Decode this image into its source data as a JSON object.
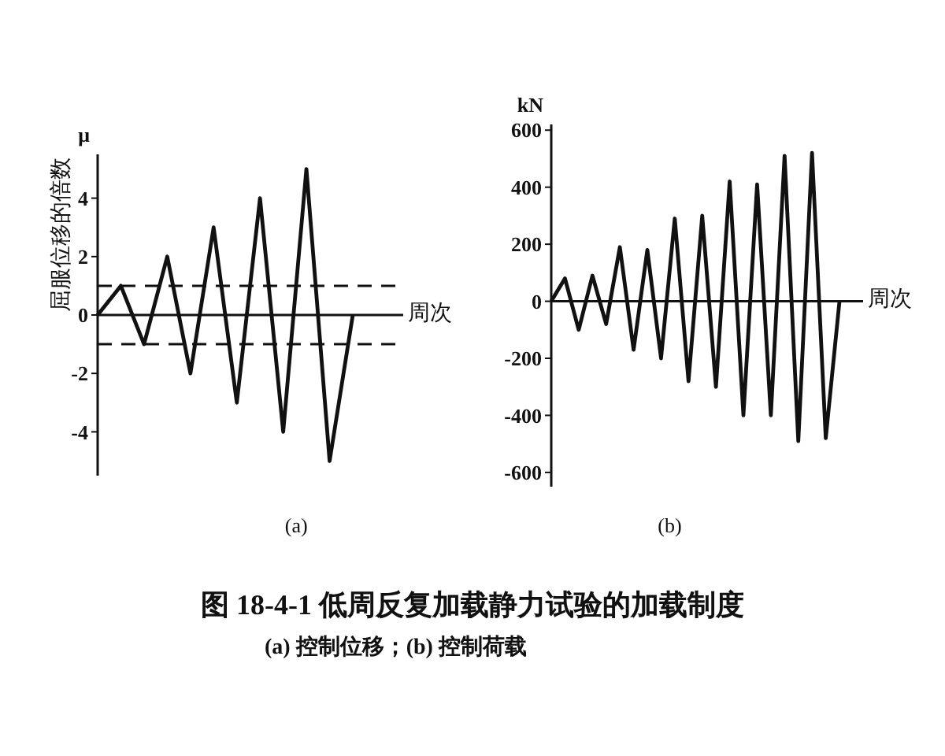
{
  "chart_data": [
    {
      "type": "line",
      "title": "(a)",
      "ylabel": "屈服位移的倍数",
      "xlabel": "周次",
      "annotations": [
        "μ"
      ],
      "categories": [
        null,
        null,
        null,
        null,
        null,
        null,
        null,
        null,
        null,
        null,
        null,
        null
      ],
      "series": [
        {
          "color": "#111111",
          "values": [
            0,
            1,
            -1,
            2,
            -2,
            3,
            -3,
            4,
            -4,
            5,
            -5,
            0
          ]
        }
      ],
      "ylim": [
        -5.5,
        5.5
      ],
      "yticks": [
        -4,
        -2,
        0,
        2,
        4
      ],
      "tick_labels": "y",
      "ref_lines": [
        {
          "axis": "y",
          "value": 1,
          "line_style": "dashed",
          "color": "#111111"
        },
        {
          "axis": "y",
          "value": -1,
          "line_style": "dashed",
          "color": "#111111"
        }
      ]
    },
    {
      "type": "line",
      "title": "(b)",
      "ylabel": "kN",
      "xlabel": "周次",
      "categories": [
        null,
        null,
        null,
        null,
        null,
        null,
        null,
        null,
        null,
        null,
        null,
        null,
        null,
        null,
        null,
        null,
        null,
        null,
        null,
        null,
        null,
        null
      ],
      "series": [
        {
          "color": "#111111",
          "values": [
            0,
            80,
            -100,
            90,
            -80,
            190,
            -170,
            180,
            -200,
            290,
            -280,
            300,
            -300,
            420,
            -400,
            410,
            -400,
            510,
            -490,
            520,
            -480,
            0
          ]
        }
      ],
      "ylim": [
        -650,
        620
      ],
      "yticks": [
        -600,
        -400,
        -200,
        0,
        200,
        400,
        600
      ],
      "tick_labels": "y"
    },
    {
      "type": "other",
      "title": "图 18-4-1  低周反复加载静力试验的加载制度",
      "subtitle": "(a) 控制位移；(b) 控制荷载"
    }
  ]
}
